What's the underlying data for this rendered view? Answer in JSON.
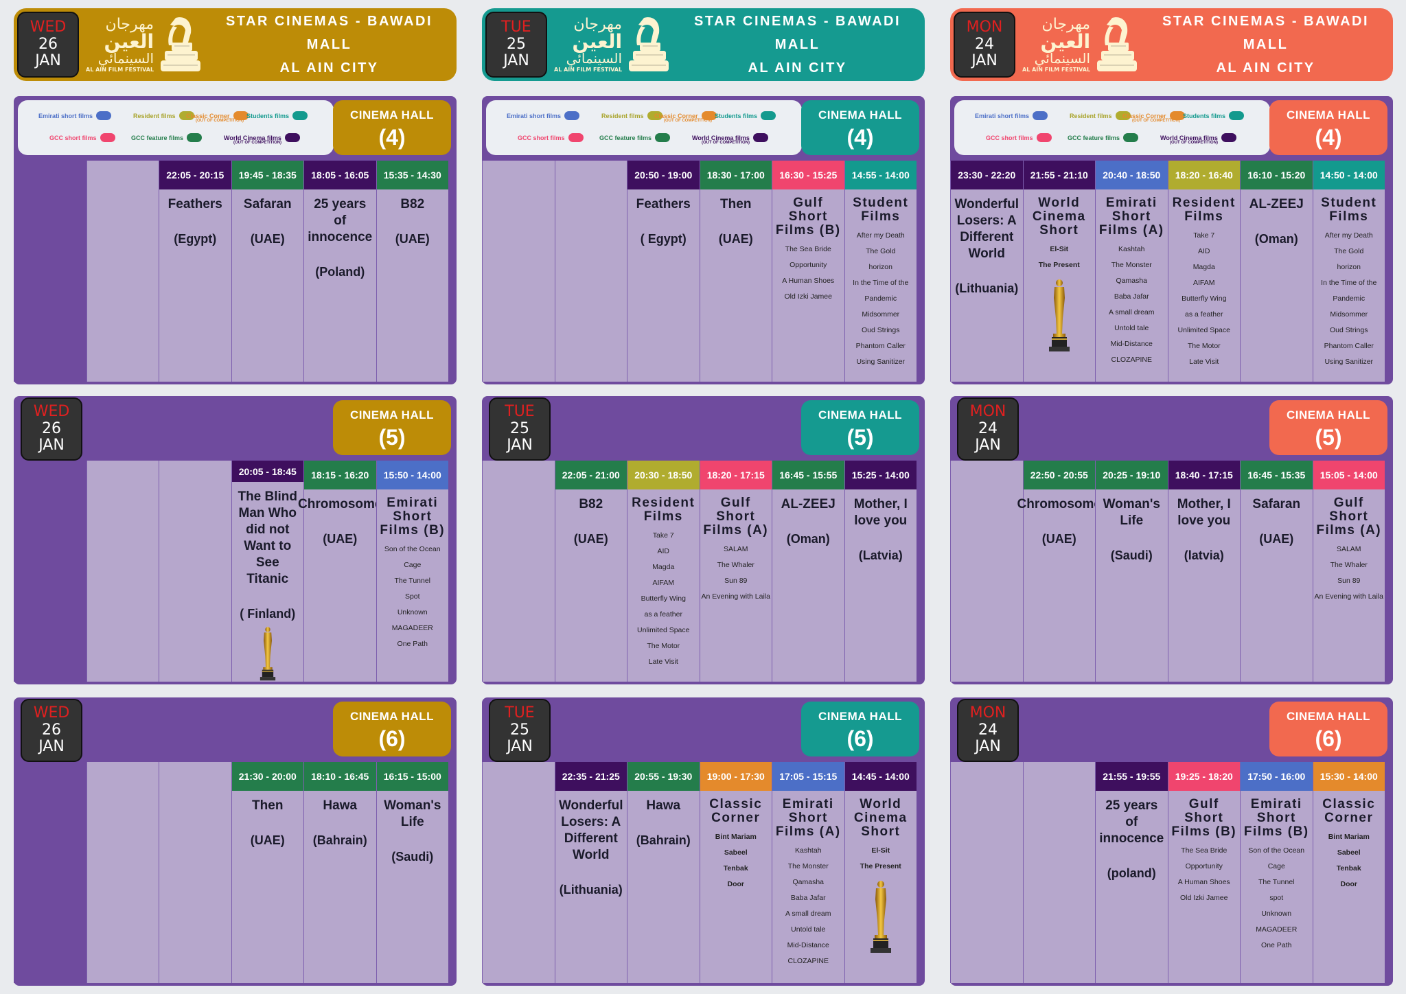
{
  "colors": {
    "wed_theme": "#bd8c07",
    "tue_theme": "#159a90",
    "mon_theme": "#f2694f",
    "panel_purple": "#6f4b9e",
    "cell_lilac": "#b6a7cc",
    "emirati_short": "#4c6fc7",
    "resident": "#b0ac2f",
    "classic_corner": "#e48a2c",
    "students": "#139a8e",
    "gcc_short": "#f0456e",
    "gcc_feature": "#247d4b",
    "world_cinema": "#3e0f5e"
  },
  "banner": {
    "line1": "STAR CINEMAS - BAWADI MALL",
    "line2": "AL AIN CITY",
    "logo_ar1": "مهرجان",
    "logo_ar2": "العين",
    "logo_ar3": "السينمائي",
    "logo_en": "AL AIN FILM FESTIVAL"
  },
  "legend": {
    "emirati": "Emirati short films",
    "resident": "Resident films",
    "classic": "Classic Corner",
    "classic_note": "(OUT OF COMPETITION)",
    "students": "Students films",
    "gcc_short": "GCC short films",
    "gcc_feature": "GCC feature films",
    "world": "World Cinema films",
    "world_note": "(OUT OF COMPETITION)"
  },
  "hall_label": "CINEMA HALL",
  "days": [
    {
      "dow": "WED",
      "day": "26",
      "month": "JAN",
      "halls": [
        {
          "number": "(4)",
          "screenings": [
            {
              "time": "22:05 - 20:15",
              "cat": "world_cinema",
              "title": "Feathers",
              "country": "(Egypt)"
            },
            {
              "time": "19:45 - 18:35",
              "cat": "gcc_feature",
              "title": "Safaran",
              "country": "(UAE)"
            },
            {
              "time": "18:05 - 16:05",
              "cat": "world_cinema",
              "title": "25 years of innocence",
              "country": "(Poland)"
            },
            {
              "time": "15:35 - 14:30",
              "cat": "gcc_feature",
              "title": "B82",
              "country": "(UAE)"
            }
          ]
        },
        {
          "number": "(5)",
          "screenings": [
            {
              "time": "20:05 - 18:45",
              "cat": "world_cinema",
              "title": "The Blind Man Who did not Want to See Titanic",
              "country": "( Finland)",
              "oscar": true
            },
            {
              "time": "18:15 - 16:20",
              "cat": "gcc_feature",
              "title": "Chromosome",
              "country": "(UAE)"
            },
            {
              "time": "15:50 - 14:00",
              "cat": "emirati_short",
              "title": "Emirati Short Films (B)",
              "program": true,
              "films": [
                "Son of the Ocean",
                "Cage",
                "The Tunnel",
                "Spot",
                "Unknown",
                "MAGADEER",
                "One Path"
              ]
            }
          ]
        },
        {
          "number": "(6)",
          "screenings": [
            {
              "time": "21:30 - 20:00",
              "cat": "gcc_feature",
              "title": "Then",
              "country": "(UAE)"
            },
            {
              "time": "18:10 - 16:45",
              "cat": "gcc_feature",
              "title": "Hawa",
              "country": "(Bahrain)"
            },
            {
              "time": "16:15 - 15:00",
              "cat": "gcc_feature",
              "title": "Woman's Life",
              "country": "(Saudi)"
            }
          ]
        }
      ]
    },
    {
      "dow": "TUE",
      "day": "25",
      "month": "JAN",
      "halls": [
        {
          "number": "(4)",
          "screenings": [
            {
              "time": "20:50 - 19:00",
              "cat": "world_cinema",
              "title": "Feathers",
              "country": "( Egypt)"
            },
            {
              "time": "18:30 - 17:00",
              "cat": "gcc_feature",
              "title": "Then",
              "country": "(UAE)"
            },
            {
              "time": "16:30 - 15:25",
              "cat": "gcc_short",
              "title": "Gulf Short Films (B)",
              "program": true,
              "films": [
                "The Sea Bride",
                "Opportunity",
                "A Human Shoes",
                "Old Izki Jamee"
              ]
            },
            {
              "time": "14:55 - 14:00",
              "cat": "students",
              "title": "Student Films",
              "program": true,
              "films": [
                "After my Death",
                "The Gold",
                "horizon",
                "In the Time of the Pandemic",
                "Midsommer",
                "Oud Strings",
                "Phantom Caller",
                "Using Sanitizer"
              ]
            }
          ]
        },
        {
          "number": "(5)",
          "screenings": [
            {
              "time": "22:05 - 21:00",
              "cat": "gcc_feature",
              "title": "B82",
              "country": "(UAE)"
            },
            {
              "time": "20:30 - 18:50",
              "cat": "resident",
              "title": "Resident Films",
              "program": true,
              "films": [
                "Take 7",
                "AID",
                "Magda",
                "AIFAM",
                "Butterfly Wing",
                "as a feather",
                "Unlimited Space",
                "The Motor",
                "Late Visit"
              ]
            },
            {
              "time": "18:20 - 17:15",
              "cat": "gcc_short",
              "title": "Gulf Short Films (A)",
              "program": true,
              "films": [
                "SALAM",
                "The Whaler",
                "Sun 89",
                "An Evening with Laila"
              ]
            },
            {
              "time": "16:45 - 15:55",
              "cat": "gcc_feature",
              "title": "AL-ZEEJ",
              "country": "(Oman)"
            },
            {
              "time": "15:25 - 14:00",
              "cat": "world_cinema",
              "title": "Mother, I love you",
              "country": "(Latvia)"
            }
          ]
        },
        {
          "number": "(6)",
          "screenings": [
            {
              "time": "22:35 - 21:25",
              "cat": "world_cinema",
              "title": "Wonderful Losers: A Different World",
              "country": "(Lithuania)"
            },
            {
              "time": "20:55 - 19:30",
              "cat": "gcc_feature",
              "title": "Hawa",
              "country": "(Bahrain)"
            },
            {
              "time": "19:00 - 17:30",
              "cat": "classic_corner",
              "title": "Classic Corner",
              "program": true,
              "bold_films": true,
              "films": [
                "Bint Mariam",
                "Sabeel",
                "Tenbak",
                "Door"
              ]
            },
            {
              "time": "17:05 - 15:15",
              "cat": "emirati_short",
              "title": "Emirati Short Films (A)",
              "program": true,
              "films": [
                "Kashtah",
                "The Monster",
                "Qamasha",
                "Baba Jafar",
                "A small dream",
                "Untold tale",
                "Mid-Distance",
                "CLOZAPINE"
              ]
            },
            {
              "time": "14:45 - 14:00",
              "cat": "world_cinema",
              "title": "World Cinema Short",
              "program": true,
              "bold_films": true,
              "films": [
                "El-Sit",
                "The Present"
              ],
              "oscar": true
            }
          ]
        }
      ]
    },
    {
      "dow": "MON",
      "day": "24",
      "month": "JAN",
      "halls": [
        {
          "number": "(4)",
          "screenings": [
            {
              "time": "23:30 - 22:20",
              "cat": "world_cinema",
              "title": "Wonderful Losers: A Different World",
              "country": "(Lithuania)"
            },
            {
              "time": "21:55 - 21:10",
              "cat": "world_cinema",
              "title": "World Cinema Short",
              "program": true,
              "bold_films": true,
              "films": [
                "El-Sit",
                "The Present"
              ],
              "oscar": true
            },
            {
              "time": "20:40 - 18:50",
              "cat": "emirati_short",
              "title": "Emirati Short Films (A)",
              "program": true,
              "films": [
                "Kashtah",
                "The Monster",
                "Qamasha",
                "Baba Jafar",
                "A small dream",
                "Untold tale",
                "Mid-Distance",
                "CLOZAPINE"
              ]
            },
            {
              "time": "18:20 - 16:40",
              "cat": "resident",
              "title": "Resident Films",
              "program": true,
              "films": [
                "Take 7",
                "AID",
                "Magda",
                "AIFAM",
                "Butterfly Wing",
                "as a feather",
                "Unlimited Space",
                "The Motor",
                "Late Visit"
              ]
            },
            {
              "time": "16:10 - 15:20",
              "cat": "gcc_feature",
              "title": "AL-ZEEJ",
              "country": "(Oman)"
            },
            {
              "time": "14:50 - 14:00",
              "cat": "students",
              "title": "Student Films",
              "program": true,
              "films": [
                "After my Death",
                "The Gold",
                "horizon",
                "In the Time of the Pandemic",
                "Midsommer",
                "Oud Strings",
                "Phantom Caller",
                "Using Sanitizer"
              ]
            }
          ]
        },
        {
          "number": "(5)",
          "screenings": [
            {
              "time": "22:50 - 20:55",
              "cat": "gcc_feature",
              "title": "Chromosome",
              "country": "(UAE)"
            },
            {
              "time": "20:25 - 19:10",
              "cat": "gcc_feature",
              "title": "Woman's Life",
              "country": "(Saudi)"
            },
            {
              "time": "18:40 - 17:15",
              "cat": "world_cinema",
              "title": "Mother, I love you",
              "country": "(latvia)"
            },
            {
              "time": "16:45 - 15:35",
              "cat": "gcc_feature",
              "title": "Safaran",
              "country": "(UAE)"
            },
            {
              "time": "15:05 - 14:00",
              "cat": "gcc_short",
              "title": "Gulf Short Films (A)",
              "program": true,
              "films": [
                "SALAM",
                "The Whaler",
                "Sun 89",
                "An Evening with Laila"
              ]
            }
          ]
        },
        {
          "number": "(6)",
          "screenings": [
            {
              "time": "21:55 - 19:55",
              "cat": "world_cinema",
              "title": "25 years of innocence",
              "country": "(poland)"
            },
            {
              "time": "19:25 - 18:20",
              "cat": "gcc_short",
              "title": "Gulf Short Films (B)",
              "program": true,
              "films": [
                "The Sea Bride",
                "Opportunity",
                "A Human Shoes",
                "Old Izki Jamee"
              ]
            },
            {
              "time": "17:50 - 16:00",
              "cat": "emirati_short",
              "title": "Emirati Short Films (B)",
              "program": true,
              "films": [
                "Son of the Ocean",
                "Cage",
                "The Tunnel",
                "spot",
                "Unknown",
                "MAGADEER",
                "One Path"
              ]
            },
            {
              "time": "15:30 - 14:00",
              "cat": "classic_corner",
              "title": "Classic Corner",
              "program": true,
              "bold_films": true,
              "films": [
                "Bint Mariam",
                "Sabeel",
                "Tenbak",
                "Door"
              ]
            }
          ]
        }
      ]
    }
  ]
}
